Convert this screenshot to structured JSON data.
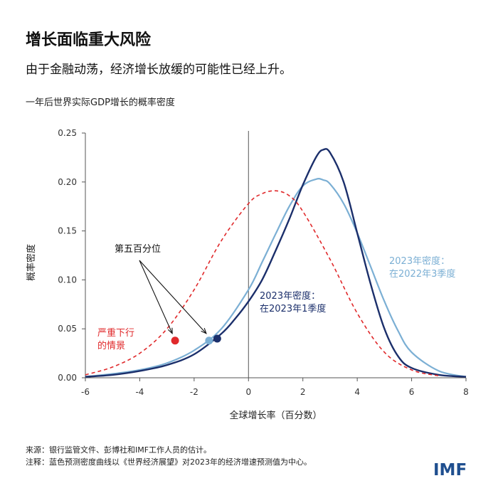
{
  "header": {
    "title": "增长面临重大风险",
    "subtitle": "由于金融动荡，经济增长放缓的可能性已经上升。"
  },
  "chart_data": {
    "type": "line",
    "title": "一年后世界实际GDP增长的概率密度",
    "xlabel": "全球增长率（百分数）",
    "ylabel": "概率密度",
    "xlim": [
      -6,
      8
    ],
    "ylim": [
      0,
      0.25
    ],
    "x_ticks": [
      -6,
      -4,
      -2,
      0,
      2,
      4,
      6,
      8
    ],
    "y_ticks": [
      0.0,
      0.05,
      0.1,
      0.15,
      0.2,
      0.25
    ],
    "y_tick_labels": [
      "0.00",
      "0.05",
      "0.10",
      "0.15",
      "0.20",
      "0.25"
    ],
    "vertical_line_at": 0,
    "grid": false,
    "series": [
      {
        "name": "2023年密度：在2022年3季度",
        "label_lines": [
          "2023年密度：",
          "在2022年3季度"
        ],
        "color": "#7bafd4",
        "style": "solid",
        "x": [
          -6,
          -5,
          -4,
          -3,
          -2,
          -1,
          0,
          0.5,
          1,
          1.5,
          2,
          2.5,
          2.75,
          3,
          3.5,
          4,
          4.5,
          5,
          5.5,
          6,
          7,
          8
        ],
        "y": [
          0.001,
          0.004,
          0.008,
          0.015,
          0.028,
          0.05,
          0.09,
          0.118,
          0.147,
          0.175,
          0.196,
          0.203,
          0.202,
          0.198,
          0.178,
          0.148,
          0.113,
          0.078,
          0.048,
          0.026,
          0.007,
          0.001
        ]
      },
      {
        "name": "2023年密度：在2023年1季度",
        "label_lines": [
          "2023年密度：",
          "在2023年1季度"
        ],
        "color": "#1b2f6b",
        "style": "solid",
        "x": [
          -6,
          -5,
          -4,
          -3,
          -2,
          -1,
          -0.5,
          0,
          0.5,
          1,
          1.5,
          2,
          2.5,
          2.75,
          3,
          3.5,
          4,
          4.5,
          5,
          5.5,
          6,
          7,
          8
        ],
        "y": [
          0.001,
          0.003,
          0.007,
          0.013,
          0.024,
          0.045,
          0.06,
          0.078,
          0.1,
          0.13,
          0.162,
          0.197,
          0.226,
          0.233,
          0.23,
          0.2,
          0.148,
          0.095,
          0.05,
          0.022,
          0.01,
          0.003,
          0.001
        ]
      },
      {
        "name": "严重下行的情景",
        "label_lines": [
          "严重下行",
          "的情景"
        ],
        "color": "#e0292b",
        "style": "dashed",
        "x": [
          -6,
          -5,
          -4,
          -3,
          -2,
          -1,
          0,
          0.5,
          1,
          1.5,
          2,
          3,
          4,
          5,
          6,
          7
        ],
        "y": [
          0.003,
          0.011,
          0.025,
          0.05,
          0.09,
          0.14,
          0.178,
          0.188,
          0.191,
          0.186,
          0.17,
          0.121,
          0.066,
          0.026,
          0.008,
          0.002
        ]
      }
    ],
    "points": [
      {
        "series": "严重下行的情景",
        "x": -2.7,
        "y": 0.038,
        "color": "#e0292b"
      },
      {
        "series": "2023年密度：在2022年3季度",
        "x": -1.45,
        "y": 0.038,
        "color": "#7bafd4"
      },
      {
        "series": "2023年密度：在2023年1季度",
        "x": -1.15,
        "y": 0.04,
        "color": "#1b2f6b"
      }
    ],
    "annotation": {
      "text": "第五百分位",
      "x": -4.2,
      "y": 0.131
    }
  },
  "footer": {
    "source": "来源：银行监管文件、彭博社和IMF工作人员的估计。",
    "note": "注释：蓝色预测密度曲线以《世界经济展望》对2023年的经济增速预测值为中心。",
    "logo": "IMF"
  }
}
